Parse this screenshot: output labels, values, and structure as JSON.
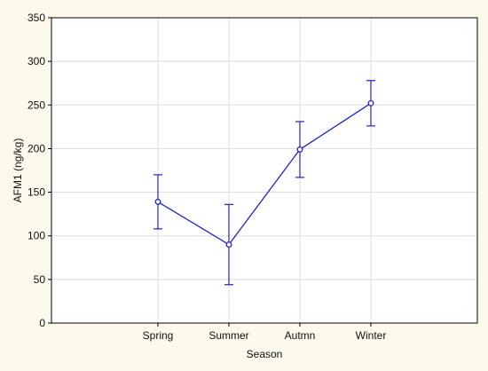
{
  "chart_data": {
    "type": "line",
    "title": "",
    "xlabel": "Season",
    "ylabel": "AFM1 (ng/kg)",
    "categories": [
      "Spring",
      "Summer",
      "Autmn",
      "Winter"
    ],
    "series": [
      {
        "values": [
          139,
          90,
          199,
          252
        ],
        "error_low": [
          108,
          44,
          167,
          226
        ],
        "error_high": [
          170,
          136,
          231,
          278
        ]
      }
    ],
    "ylim": [
      0,
      350
    ],
    "yticks": [
      0,
      50,
      100,
      150,
      200,
      250,
      300,
      350
    ],
    "grid": true,
    "legend": "none",
    "colors": {
      "line": "#2222cc",
      "grid": "#dddddd",
      "frame": "#000000",
      "plot_bg": "#ffffff",
      "page_bg": "#fdf9ec"
    }
  }
}
